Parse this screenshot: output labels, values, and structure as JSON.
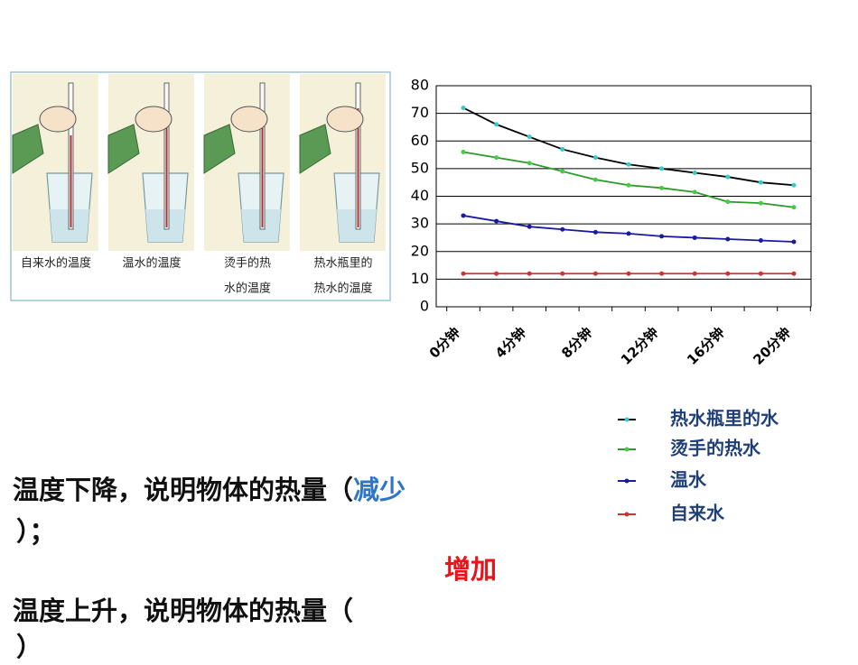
{
  "illustration": {
    "captions": [
      [
        "自来水的温度"
      ],
      [
        "温水的温度"
      ],
      [
        "烫手的热",
        "水的温度"
      ],
      [
        "热水瓶里的",
        "热水的温度"
      ]
    ]
  },
  "chart_data": {
    "type": "line",
    "categories": [
      "0分钟",
      null,
      "4分钟",
      null,
      "8分钟",
      null,
      "12分钟",
      null,
      "16分钟",
      null,
      "20分钟"
    ],
    "series": [
      {
        "name": "热水瓶里的水",
        "color": "#000000",
        "marker_color": "#33cccc",
        "values": [
          72,
          66,
          61.5,
          57,
          54,
          51.5,
          50,
          48.5,
          47,
          45,
          44
        ]
      },
      {
        "name": "烫手的热水",
        "color": "#2a9a2a",
        "marker_color": "#44cc44",
        "values": [
          56,
          54,
          52,
          49,
          46,
          44,
          43,
          41.5,
          38,
          37.5,
          36
        ]
      },
      {
        "name": "温水",
        "color": "#1a1aa0",
        "marker_color": "#1a1aa0",
        "values": [
          33,
          31,
          29,
          28,
          27,
          26.5,
          25.5,
          25,
          24.5,
          24,
          23.5
        ]
      },
      {
        "name": "自来水",
        "color": "#cc3333",
        "marker_color": "#cc3333",
        "values": [
          12,
          12,
          12,
          12,
          12,
          12,
          12,
          12,
          12,
          12,
          12
        ]
      }
    ],
    "ylim": [
      0,
      80
    ],
    "yticks": [
      0,
      10,
      20,
      30,
      40,
      50,
      60,
      70,
      80
    ],
    "grid": true,
    "legend": "bottom-right"
  },
  "statements": [
    {
      "prefix": "温度下降，说明物体的热量（",
      "answer": "减少",
      "suffix": "）；"
    },
    {
      "prefix": "温度上升，说明物体的热量（",
      "answer": "增加",
      "suffix": "）"
    }
  ]
}
